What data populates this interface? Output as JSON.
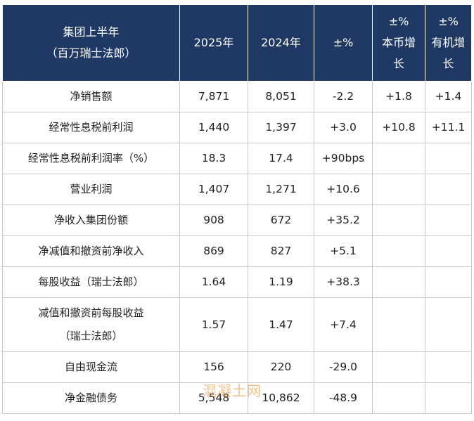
{
  "table": {
    "headers": [
      "集团上半年\n（百万瑞士法郎）",
      "2025年",
      "2024年",
      "±%",
      "±%\n本币增\n长",
      "±%\n有机增\n长"
    ],
    "rows": [
      [
        "净销售额",
        "7,871",
        "8,051",
        "-2.2",
        "+1.8",
        "+1.4"
      ],
      [
        "经常性息税前利润",
        "1,440",
        "1,397",
        "+3.0",
        "+10.8",
        "+11.1"
      ],
      [
        "经常性息税前利润率（%）",
        "18.3",
        "17.4",
        "+90bps",
        "",
        ""
      ],
      [
        "营业利润",
        "1,407",
        "1,271",
        "+10.6",
        "",
        ""
      ],
      [
        "净收入集团份额",
        "908",
        "672",
        "+35.2",
        "",
        ""
      ],
      [
        "净减值和撤资前净收入",
        "869",
        "827",
        "+5.1",
        "",
        ""
      ],
      [
        "每股收益（瑞士法郎）",
        "1.64",
        "1.19",
        "+38.3",
        "",
        ""
      ],
      [
        "减值和撤资前每股收益\n（瑞士法郎）",
        "1.57",
        "1.47",
        "+7.4",
        "",
        ""
      ],
      [
        "自由现金流",
        "156",
        "220",
        "-29.0",
        "",
        ""
      ],
      [
        "净金融债务",
        "5,548",
        "10,862",
        "-48.9",
        "",
        ""
      ]
    ]
  },
  "watermark": "混凝土网"
}
